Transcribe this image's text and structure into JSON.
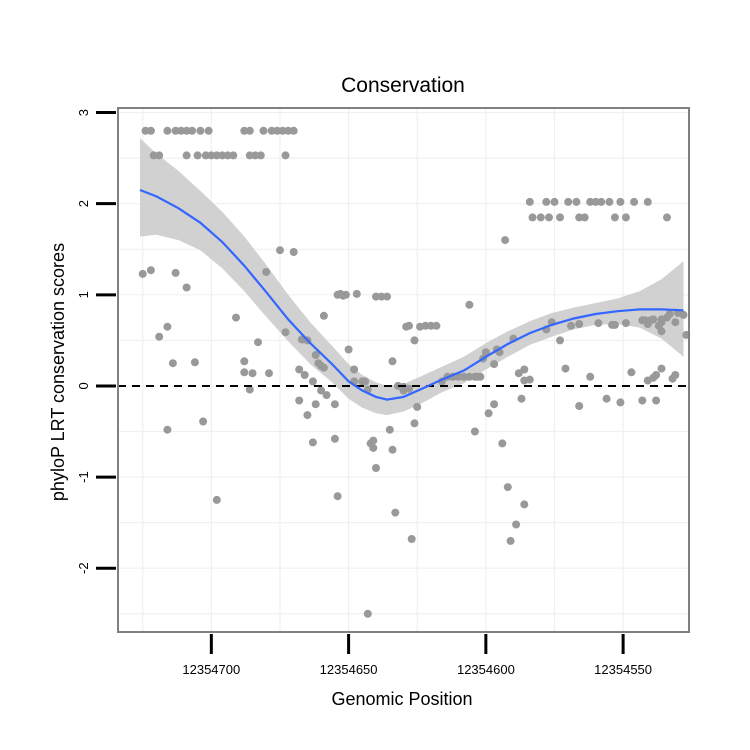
{
  "chart_data": {
    "type": "scatter",
    "title": "Conservation",
    "xlabel": "Genomic Position",
    "ylabel": "phyloP LRT conservation scores",
    "x_reversed": true,
    "xlim": [
      12354734,
      12354526
    ],
    "ylim": [
      -2.7,
      3.05
    ],
    "xticks": [
      12354700,
      12354650,
      12354600,
      12354550
    ],
    "xtick_labels": [
      "12354700",
      "12354650",
      "12354600",
      "12354550"
    ],
    "yticks": [
      3,
      2,
      1,
      0,
      -1,
      -2
    ],
    "ytick_labels": [
      "3",
      "2",
      "1",
      "0",
      "-1",
      "-2"
    ],
    "reference_line": {
      "y": 0,
      "style": "dashed",
      "color": "#000000"
    },
    "colors": {
      "points": "#999999",
      "smooth": "#3366ff",
      "ribbon": "#c9c9c9",
      "panel_border": "#808080",
      "grid": "#f0f0f0"
    },
    "points": [
      [
        12354724,
        2.8
      ],
      [
        12354722,
        2.8
      ],
      [
        12354716,
        2.8
      ],
      [
        12354713,
        2.8
      ],
      [
        12354711,
        2.8
      ],
      [
        12354709,
        2.8
      ],
      [
        12354707,
        2.8
      ],
      [
        12354704,
        2.8
      ],
      [
        12354701,
        2.8
      ],
      [
        12354688,
        2.8
      ],
      [
        12354686,
        2.8
      ],
      [
        12354681,
        2.8
      ],
      [
        12354678,
        2.8
      ],
      [
        12354676,
        2.8
      ],
      [
        12354674,
        2.8
      ],
      [
        12354672,
        2.8
      ],
      [
        12354670,
        2.8
      ],
      [
        12354721,
        2.53
      ],
      [
        12354719,
        2.53
      ],
      [
        12354709,
        2.53
      ],
      [
        12354705,
        2.53
      ],
      [
        12354702,
        2.53
      ],
      [
        12354700,
        2.53
      ],
      [
        12354698,
        2.53
      ],
      [
        12354696,
        2.53
      ],
      [
        12354694,
        2.53
      ],
      [
        12354692,
        2.53
      ],
      [
        12354686,
        2.53
      ],
      [
        12354684,
        2.53
      ],
      [
        12354682,
        2.53
      ],
      [
        12354673,
        2.53
      ],
      [
        12354725,
        1.23
      ],
      [
        12354722,
        1.27
      ],
      [
        12354713,
        1.24
      ],
      [
        12354709,
        1.08
      ],
      [
        12354691,
        0.75
      ],
      [
        12354680,
        1.25
      ],
      [
        12354675,
        1.49
      ],
      [
        12354670,
        1.47
      ],
      [
        12354719,
        0.54
      ],
      [
        12354716,
        0.65
      ],
      [
        12354714,
        0.25
      ],
      [
        12354716,
        -0.48
      ],
      [
        12354706,
        0.26
      ],
      [
        12354703,
        -0.39
      ],
      [
        12354698,
        -1.25
      ],
      [
        12354685,
        0.14
      ],
      [
        12354688,
        0.27
      ],
      [
        12354688,
        0.15
      ],
      [
        12354686,
        -0.04
      ],
      [
        12354683,
        0.48
      ],
      [
        12354679,
        0.14
      ],
      [
        12354673,
        0.59
      ],
      [
        12354667,
        0.51
      ],
      [
        12354665,
        0.5
      ],
      [
        12354662,
        0.34
      ],
      [
        12354661,
        0.25
      ],
      [
        12354660,
        0.22
      ],
      [
        12354659,
        0.2
      ],
      [
        12354668,
        0.18
      ],
      [
        12354666,
        0.12
      ],
      [
        12354663,
        0.05
      ],
      [
        12354668,
        -0.16
      ],
      [
        12354665,
        -0.32
      ],
      [
        12354662,
        -0.2
      ],
      [
        12354660,
        -0.05
      ],
      [
        12354658,
        -0.1
      ],
      [
        12354655,
        -0.2
      ],
      [
        12354663,
        -0.62
      ],
      [
        12354655,
        -0.58
      ],
      [
        12354654,
        -1.21
      ],
      [
        12354659,
        0.77
      ],
      [
        12354654,
        1.0
      ],
      [
        12354653,
        1.01
      ],
      [
        12354652,
        0.99
      ],
      [
        12354651,
        1.0
      ],
      [
        12354650,
        0.4
      ],
      [
        12354648,
        0.18
      ],
      [
        12354648,
        0.05
      ],
      [
        12354647,
        1.01
      ],
      [
        12354645,
        0.05
      ],
      [
        12354644,
        0.05
      ],
      [
        12354643,
        -0.04
      ],
      [
        12354642,
        -0.63
      ],
      [
        12354641,
        -0.68
      ],
      [
        12354641,
        -0.6
      ],
      [
        12354640,
        -0.9
      ],
      [
        12354643,
        -2.5
      ],
      [
        12354640,
        0.98
      ],
      [
        12354638,
        0.98
      ],
      [
        12354636,
        0.98
      ],
      [
        12354634,
        0.27
      ],
      [
        12354635,
        -0.48
      ],
      [
        12354634,
        -0.7
      ],
      [
        12354633,
        -1.39
      ],
      [
        12354627,
        -1.68
      ],
      [
        12354632,
        0.0
      ],
      [
        12354630,
        -0.05
      ],
      [
        12354628,
        -0.03
      ],
      [
        12354625,
        -0.23
      ],
      [
        12354626,
        -0.41
      ],
      [
        12354630,
        -0.01
      ],
      [
        12354626,
        0.5
      ],
      [
        12354629,
        0.65
      ],
      [
        12354628,
        0.66
      ],
      [
        12354624,
        0.65
      ],
      [
        12354622,
        0.66
      ],
      [
        12354620,
        0.66
      ],
      [
        12354618,
        0.66
      ],
      [
        12354616,
        0.05
      ],
      [
        12354614,
        0.1
      ],
      [
        12354612,
        0.1
      ],
      [
        12354610,
        0.1
      ],
      [
        12354608,
        0.1
      ],
      [
        12354606,
        0.1
      ],
      [
        12354604,
        0.1
      ],
      [
        12354602,
        0.1
      ],
      [
        12354603,
        0.1
      ],
      [
        12354606,
        0.89
      ],
      [
        12354604,
        -0.5
      ],
      [
        12354601,
        0.3
      ],
      [
        12354600,
        0.37
      ],
      [
        12354599,
        -0.3
      ],
      [
        12354597,
        0.24
      ],
      [
        12354596,
        0.4
      ],
      [
        12354595,
        0.37
      ],
      [
        12354597,
        -0.2
      ],
      [
        12354593,
        1.6
      ],
      [
        12354590,
        0.52
      ],
      [
        12354588,
        0.14
      ],
      [
        12354594,
        -0.63
      ],
      [
        12354592,
        -1.11
      ],
      [
        12354591,
        -1.7
      ],
      [
        12354589,
        -1.52
      ],
      [
        12354586,
        -1.3
      ],
      [
        12354586,
        0.18
      ],
      [
        12354586,
        0.06
      ],
      [
        12354584,
        0.07
      ],
      [
        12354587,
        -0.14
      ],
      [
        12354584,
        2.02
      ],
      [
        12354583,
        1.85
      ],
      [
        12354580,
        1.85
      ],
      [
        12354578,
        2.02
      ],
      [
        12354577,
        1.85
      ],
      [
        12354575,
        2.02
      ],
      [
        12354573,
        1.85
      ],
      [
        12354570,
        2.02
      ],
      [
        12354567,
        2.02
      ],
      [
        12354566,
        1.85
      ],
      [
        12354564,
        1.85
      ],
      [
        12354562,
        2.02
      ],
      [
        12354560,
        2.02
      ],
      [
        12354558,
        2.02
      ],
      [
        12354555,
        2.02
      ],
      [
        12354553,
        1.85
      ],
      [
        12354551,
        2.02
      ],
      [
        12354549,
        1.85
      ],
      [
        12354546,
        2.02
      ],
      [
        12354541,
        2.02
      ],
      [
        12354534,
        1.85
      ],
      [
        12354578,
        0.62
      ],
      [
        12354576,
        0.7
      ],
      [
        12354573,
        0.5
      ],
      [
        12354571,
        0.19
      ],
      [
        12354569,
        0.66
      ],
      [
        12354566,
        -0.22
      ],
      [
        12354566,
        0.68
      ],
      [
        12354562,
        0.1
      ],
      [
        12354559,
        0.69
      ],
      [
        12354556,
        -0.14
      ],
      [
        12354554,
        0.67
      ],
      [
        12354553,
        0.67
      ],
      [
        12354551,
        -0.18
      ],
      [
        12354549,
        0.69
      ],
      [
        12354547,
        0.15
      ],
      [
        12354543,
        0.72
      ],
      [
        12354542,
        0.72
      ],
      [
        12354541,
        0.68
      ],
      [
        12354540,
        0.72
      ],
      [
        12354539,
        0.73
      ],
      [
        12354537,
        0.66
      ],
      [
        12354536,
        0.6
      ],
      [
        12354536,
        0.73
      ],
      [
        12354536,
        0.7
      ],
      [
        12354534,
        0.75
      ],
      [
        12354533,
        0.79
      ],
      [
        12354531,
        0.7
      ],
      [
        12354530,
        0.8
      ],
      [
        12354528,
        0.78
      ],
      [
        12354527,
        0.56
      ],
      [
        12354543,
        -0.16
      ],
      [
        12354541,
        0.06
      ],
      [
        12354539,
        0.09
      ],
      [
        12354538,
        0.12
      ],
      [
        12354538,
        -0.16
      ],
      [
        12354536,
        0.19
      ],
      [
        12354532,
        0.08
      ],
      [
        12354531,
        0.12
      ]
    ],
    "smooth_line": [
      [
        12354726,
        2.15
      ],
      [
        12354720,
        2.08
      ],
      [
        12354712,
        1.95
      ],
      [
        12354704,
        1.79
      ],
      [
        12354696,
        1.58
      ],
      [
        12354688,
        1.32
      ],
      [
        12354680,
        1.03
      ],
      [
        12354672,
        0.73
      ],
      [
        12354664,
        0.47
      ],
      [
        12354656,
        0.24
      ],
      [
        12354650,
        0.05
      ],
      [
        12354645,
        -0.05
      ],
      [
        12354640,
        -0.12
      ],
      [
        12354636,
        -0.15
      ],
      [
        12354630,
        -0.12
      ],
      [
        12354624,
        -0.04
      ],
      [
        12354616,
        0.07
      ],
      [
        12354608,
        0.17
      ],
      [
        12354600,
        0.32
      ],
      [
        12354592,
        0.46
      ],
      [
        12354584,
        0.58
      ],
      [
        12354576,
        0.67
      ],
      [
        12354568,
        0.74
      ],
      [
        12354560,
        0.79
      ],
      [
        12354552,
        0.82
      ],
      [
        12354544,
        0.84
      ],
      [
        12354536,
        0.84
      ],
      [
        12354528,
        0.83
      ]
    ],
    "ribbon_upper": [
      2.72,
      2.55,
      2.36,
      2.14,
      1.91,
      1.64,
      1.33,
      1.0,
      0.7,
      0.44,
      0.24,
      0.12,
      0.04,
      0.0,
      0.02,
      0.1,
      0.21,
      0.32,
      0.47,
      0.6,
      0.71,
      0.8,
      0.86,
      0.91,
      0.96,
      1.04,
      1.17,
      1.37
    ],
    "ribbon_lower": [
      1.64,
      1.66,
      1.6,
      1.49,
      1.29,
      1.04,
      0.76,
      0.49,
      0.24,
      0.04,
      -0.14,
      -0.24,
      -0.3,
      -0.32,
      -0.28,
      -0.2,
      -0.07,
      0.03,
      0.18,
      0.32,
      0.45,
      0.54,
      0.62,
      0.67,
      0.68,
      0.64,
      0.52,
      0.32
    ]
  }
}
